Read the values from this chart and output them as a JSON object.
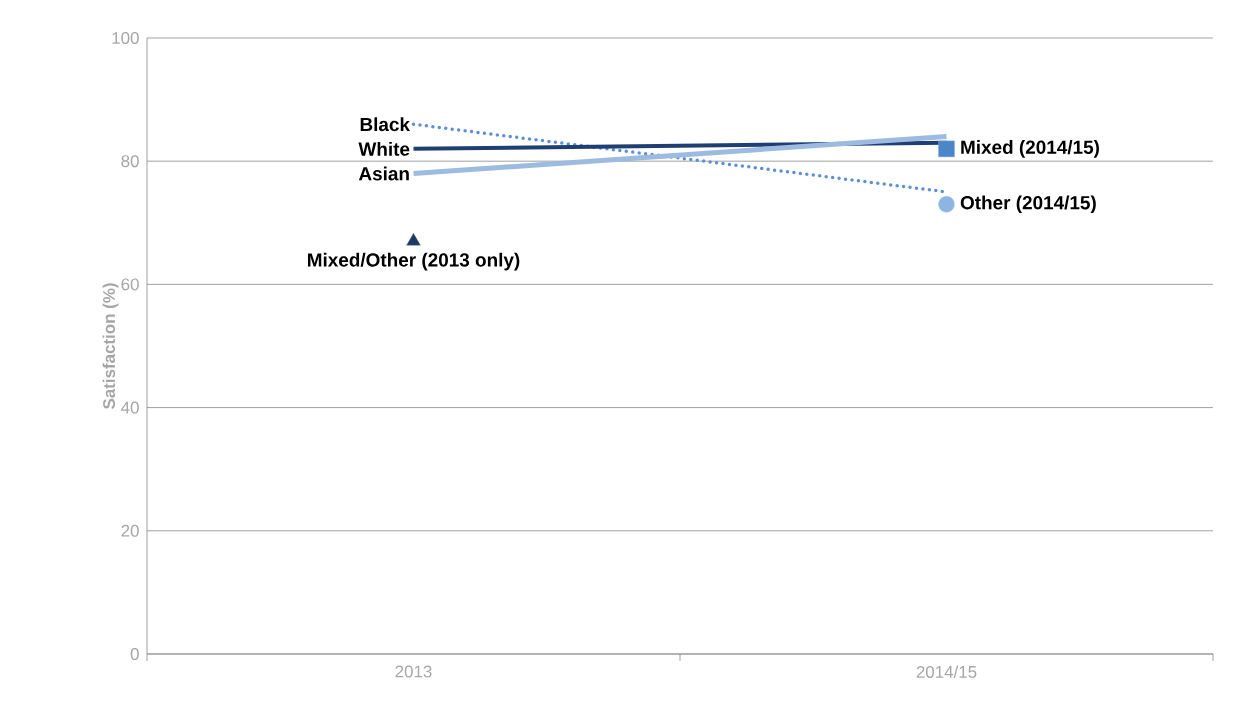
{
  "chart_data": {
    "type": "line",
    "ylabel": "Satisfaction (%)",
    "categories": [
      "2013",
      "2014/15"
    ],
    "ylim": [
      0,
      100
    ],
    "yticks": [
      0,
      20,
      40,
      60,
      80,
      100
    ],
    "grid": "y",
    "series": [
      {
        "name": "Black",
        "color": "#5b8fd8",
        "line_style": "dotted",
        "marker": "none",
        "values": [
          86,
          75
        ]
      },
      {
        "name": "White",
        "color": "#1f3f73",
        "line_style": "solid",
        "marker": "none",
        "values": [
          82,
          83
        ]
      },
      {
        "name": "Asian",
        "color": "#9dbbe0",
        "line_style": "solid",
        "marker": "none",
        "values": [
          78,
          84
        ]
      },
      {
        "name": "Mixed/Other (2013 only)",
        "type": "scatter",
        "color": "#1f3864",
        "marker": "triangle",
        "values": [
          67,
          null
        ]
      },
      {
        "name": "Mixed (2014/15)",
        "type": "scatter",
        "color": "#4a86c8",
        "marker": "square",
        "values": [
          null,
          82
        ]
      },
      {
        "name": "Other (2014/15)",
        "type": "scatter",
        "color": "#8eb4e3",
        "marker": "circle",
        "values": [
          null,
          73
        ]
      }
    ]
  }
}
